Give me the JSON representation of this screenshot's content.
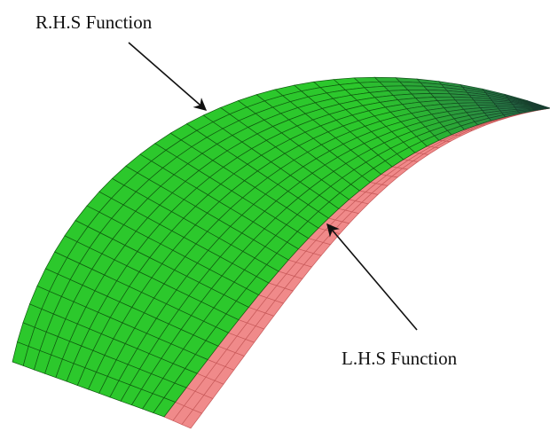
{
  "labels": {
    "rhs": "R.H.S Function",
    "lhs": "L.H.S Function"
  }
}
